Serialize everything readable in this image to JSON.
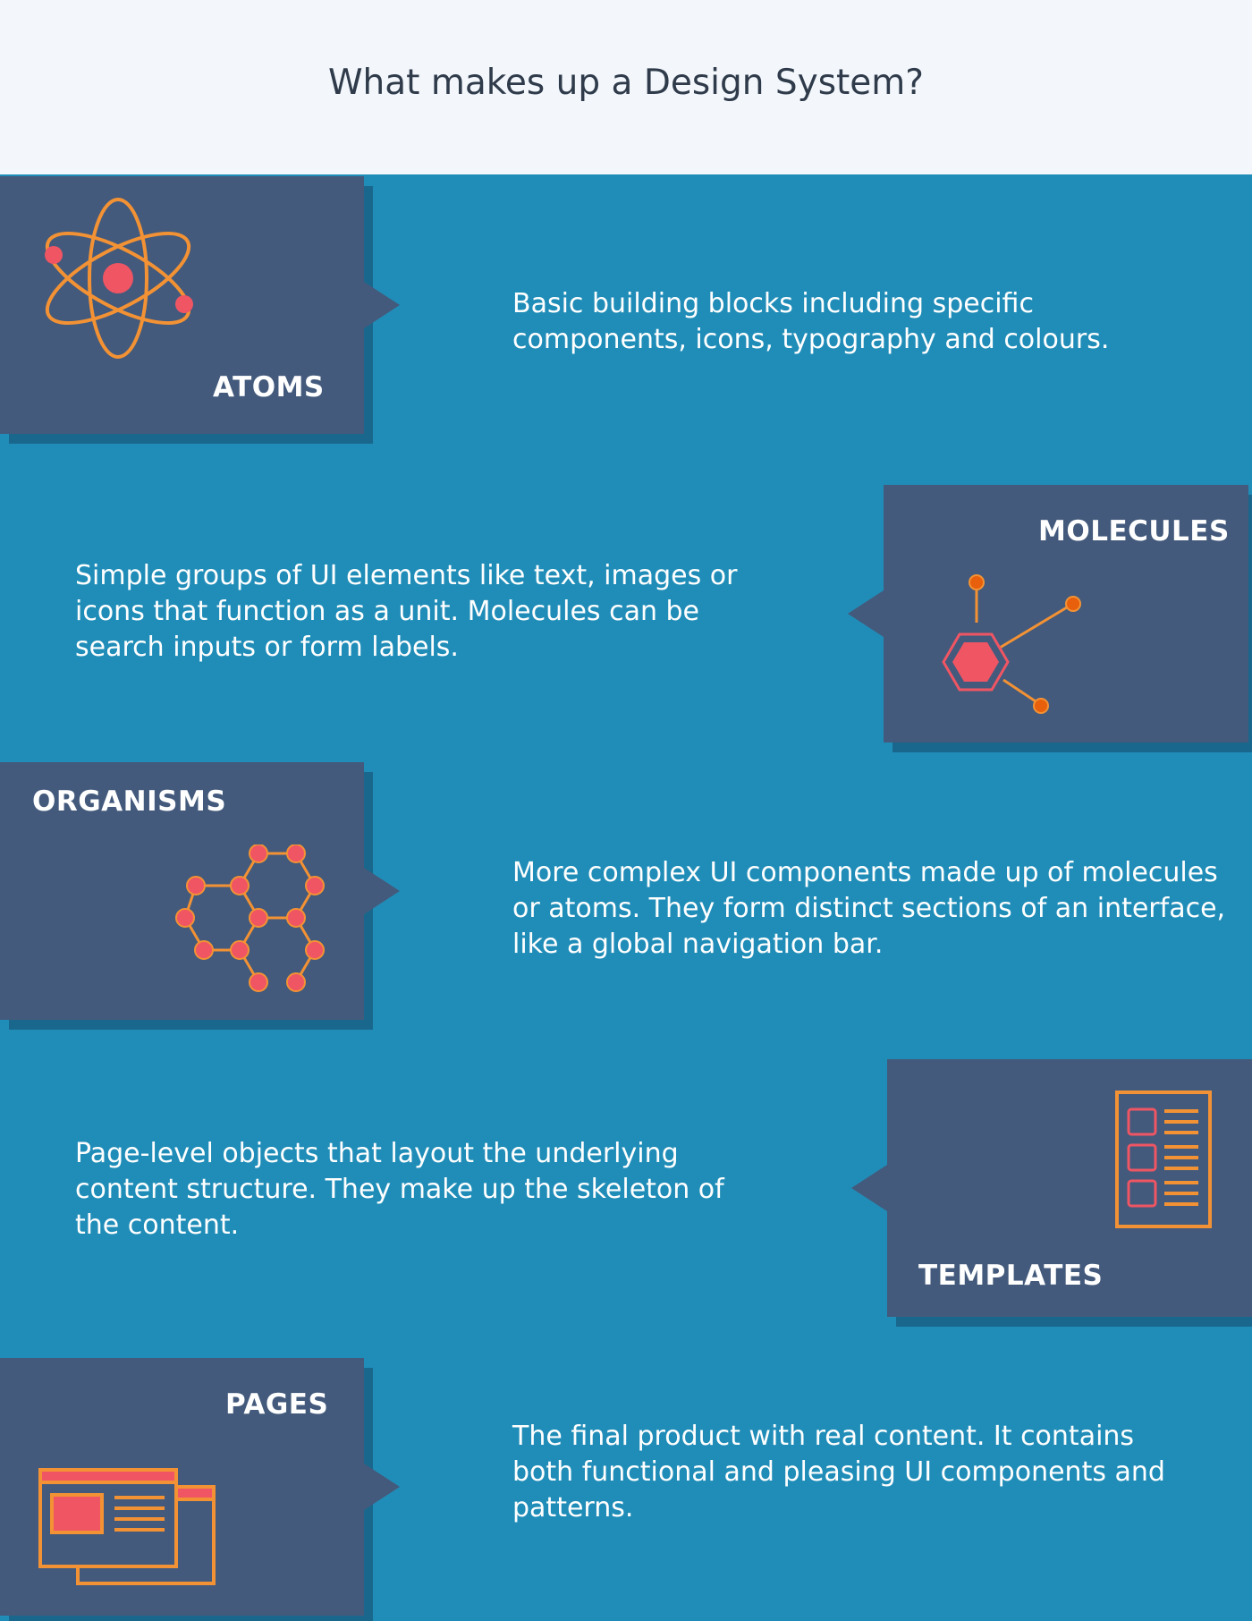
{
  "title": "What makes up a Design System?",
  "colors": {
    "background": "#208db8",
    "header_background": "#f3f7fc",
    "card": "#435a7c",
    "accent_orange": "#f39234",
    "accent_red": "#f05563"
  },
  "sections": [
    {
      "label": "ATOMS",
      "icon": "atom-icon",
      "description": "Basic building blocks including specific components, icons, typography and colours."
    },
    {
      "label": "MOLECULES",
      "icon": "molecule-icon",
      "description": "Simple groups of UI elements like text, images or icons that function as a unit. Molecules can be search inputs or form labels."
    },
    {
      "label": "ORGANISMS",
      "icon": "organism-icon",
      "description": "More complex UI components made up of molecules or atoms. They form distinct sections of an interface, like a global navigation bar."
    },
    {
      "label": "TEMPLATES",
      "icon": "template-icon",
      "description": "Page-level objects that layout the underlying content structure. They make up the skeleton of the content."
    },
    {
      "label": "PAGES",
      "icon": "pages-icon",
      "description": "The final product with real content. It contains both functional and pleasing UI components and patterns."
    }
  ]
}
